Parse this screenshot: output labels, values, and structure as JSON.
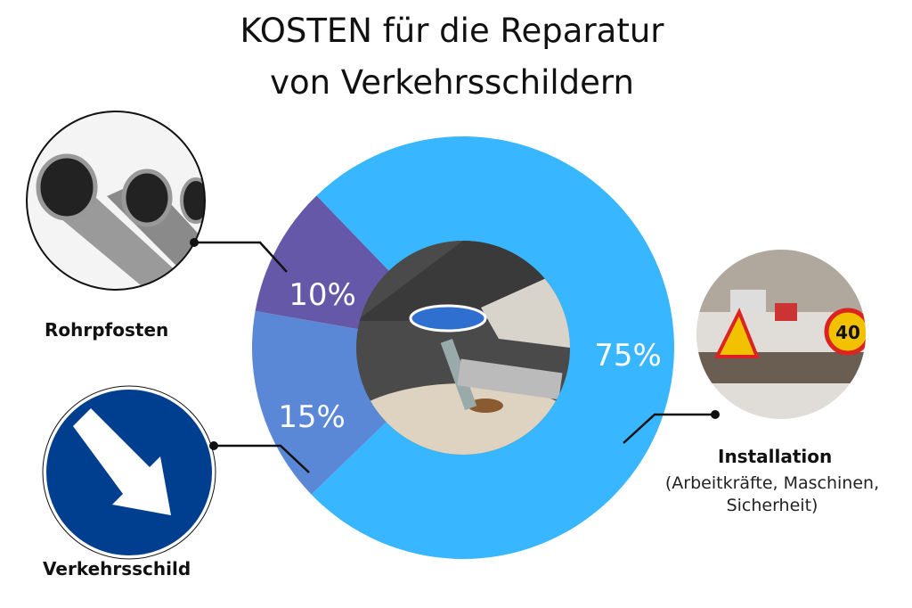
{
  "chart_data": {
    "type": "pie",
    "title": "KOSTEN für die Reparatur",
    "subtitle": "von Verkehrsschildern",
    "donut": true,
    "slices": [
      {
        "label": "Installation",
        "detail": "(Arbeitkräfte, Maschinen, Sicherheit)",
        "value": 75,
        "display": "75%",
        "color": "#38b6ff"
      },
      {
        "label": "Verkehrsschild",
        "value": 15,
        "display": "15%",
        "color": "#5a87d6"
      },
      {
        "label": "Rohrpfosten",
        "value": 10,
        "display": "10%",
        "color": "#6558a8"
      }
    ],
    "detail_lines": [
      "(Arbeitkräfte, Maschinen,",
      "Sicherheit)"
    ]
  }
}
